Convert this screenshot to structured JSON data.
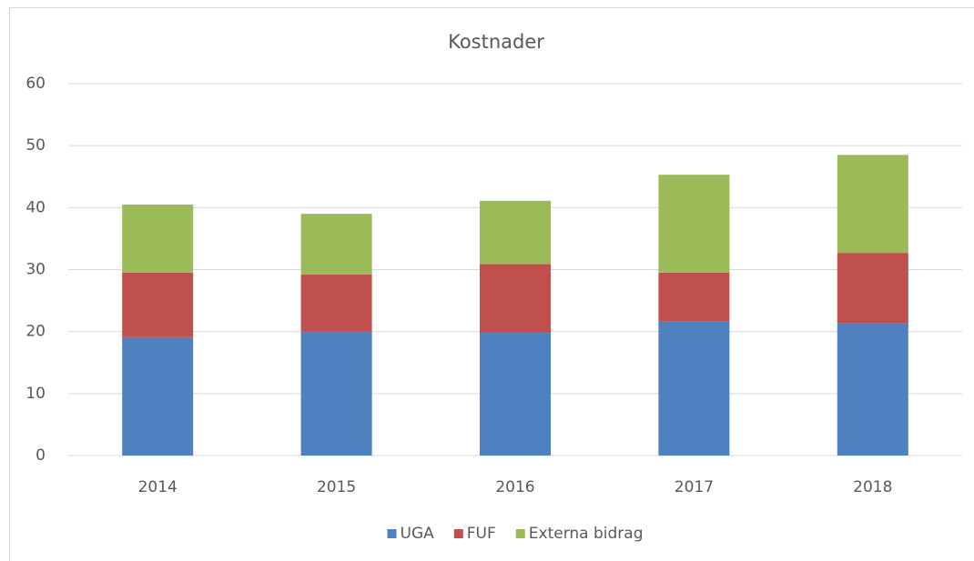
{
  "chart_data": {
    "type": "stacked_bar",
    "title": "Kostnader",
    "categories": [
      "2014",
      "2015",
      "2016",
      "2017",
      "2018"
    ],
    "series": [
      {
        "name": "UGA",
        "color": "#4e81bd",
        "values": [
          19.1,
          20.0,
          19.8,
          21.7,
          21.4
        ]
      },
      {
        "name": "FUF",
        "color": "#c0504d",
        "values": [
          10.4,
          9.2,
          11.1,
          7.8,
          11.3
        ]
      },
      {
        "name": "Externa bidrag",
        "color": "#9bbb59",
        "values": [
          11.0,
          9.8,
          10.2,
          15.8,
          15.8
        ]
      }
    ],
    "ylim": [
      0,
      60
    ],
    "yticks": [
      0,
      10,
      20,
      30,
      40,
      50,
      60
    ],
    "grid": true,
    "legend": "bottom"
  }
}
